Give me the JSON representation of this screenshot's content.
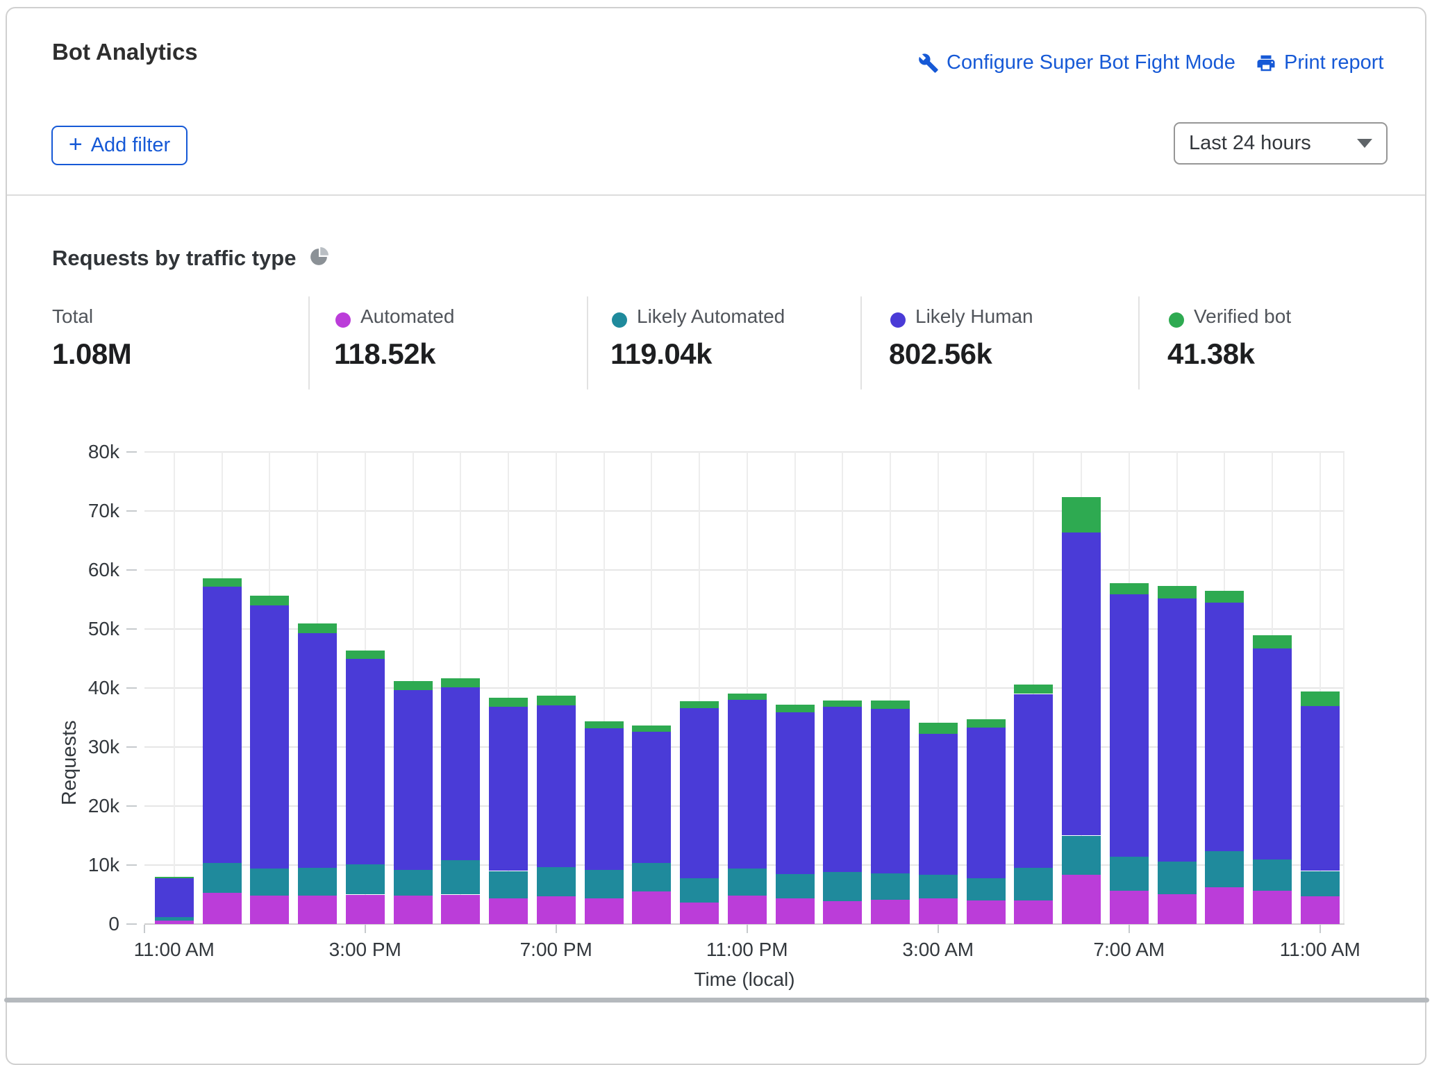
{
  "colors": {
    "accent_blue": "#1659d6",
    "card_border": "#d0d0d0",
    "grid_line": "#e6e6e6",
    "axis_line": "#cfcfcf",
    "bottom_band": "#b5b9bd",
    "pie_icon_dark": "#8b9196",
    "pie_icon_light": "#b9bec3"
  },
  "header": {
    "title": "Bot Analytics",
    "configure_link": "Configure Super Bot Fight Mode",
    "print_link": "Print report",
    "add_filter": {
      "plus": "+",
      "label": "Add filter"
    },
    "time_range": "Last 24 hours"
  },
  "section": {
    "title": "Requests by traffic type"
  },
  "stats": [
    {
      "label": "Total",
      "value": "1.08M",
      "color": null
    },
    {
      "label": "Automated",
      "value": "118.52k",
      "color": "#bb3dd9"
    },
    {
      "label": "Likely Automated",
      "value": "119.04k",
      "color": "#1f8a9c"
    },
    {
      "label": "Likely Human",
      "value": "802.56k",
      "color": "#4a3bd7"
    },
    {
      "label": "Verified bot",
      "value": "41.38k",
      "color": "#2eaa51"
    }
  ],
  "chart_data": {
    "type": "bar",
    "stacked": true,
    "title": "Requests by traffic type",
    "xlabel": "Time (local)",
    "ylabel": "Requests",
    "units": "thousands of requests",
    "ylim": [
      0,
      80000
    ],
    "grid": "horizontal gridlines every 10k, vertical gridline at each hourly bar",
    "legend_position": "top stats row",
    "yticks": [
      "0",
      "10k",
      "20k",
      "30k",
      "40k",
      "50k",
      "60k",
      "70k",
      "80k"
    ],
    "xtick_labels": [
      "11:00 AM",
      "3:00 PM",
      "7:00 PM",
      "11:00 PM",
      "3:00 AM",
      "7:00 AM",
      "11:00 AM"
    ],
    "xtick_indices": [
      0,
      4,
      8,
      12,
      16,
      20,
      24
    ],
    "categories": [
      "11:00 AM",
      "12:00 PM",
      "1:00 PM",
      "2:00 PM",
      "3:00 PM",
      "4:00 PM",
      "5:00 PM",
      "6:00 PM",
      "7:00 PM",
      "8:00 PM",
      "9:00 PM",
      "10:00 PM",
      "11:00 PM",
      "12:00 AM",
      "1:00 AM",
      "2:00 AM",
      "3:00 AM",
      "4:00 AM",
      "5:00 AM",
      "6:00 AM",
      "7:00 AM",
      "8:00 AM",
      "9:00 AM",
      "10:00 AM",
      "11:00 AM"
    ],
    "series": [
      {
        "name": "Automated",
        "color": "#bb3dd9",
        "values": [
          0.55,
          5.3,
          4.8,
          4.8,
          5.0,
          4.8,
          5.0,
          4.4,
          4.7,
          4.3,
          5.5,
          3.6,
          4.8,
          4.4,
          3.9,
          4.1,
          4.3,
          4.0,
          4.0,
          8.3,
          5.6,
          5.1,
          6.2,
          5.7,
          4.7
        ]
      },
      {
        "name": "Likely Automated",
        "color": "#1f8a9c",
        "values": [
          0.65,
          5.1,
          4.6,
          4.7,
          5.1,
          4.4,
          5.8,
          4.6,
          4.9,
          4.9,
          4.9,
          4.2,
          4.6,
          4.1,
          4.9,
          4.5,
          4.1,
          3.8,
          5.5,
          6.7,
          5.8,
          5.5,
          6.2,
          5.2,
          4.3
        ]
      },
      {
        "name": "Likely Human",
        "color": "#4a3bd7",
        "values": [
          6.55,
          46.8,
          44.6,
          39.8,
          34.8,
          30.5,
          29.3,
          27.8,
          27.5,
          24.0,
          22.2,
          28.8,
          28.6,
          27.4,
          28.0,
          27.9,
          23.8,
          25.5,
          29.5,
          51.4,
          44.5,
          44.6,
          42.1,
          35.8,
          27.9
        ]
      },
      {
        "name": "Verified bot",
        "color": "#2eaa51",
        "values": [
          0.3,
          1.4,
          1.6,
          1.7,
          1.4,
          1.5,
          1.6,
          1.6,
          1.6,
          1.2,
          1.0,
          1.2,
          1.1,
          1.3,
          1.1,
          1.4,
          1.9,
          1.4,
          1.6,
          5.9,
          1.9,
          2.1,
          2.0,
          2.2,
          2.5
        ]
      }
    ]
  }
}
